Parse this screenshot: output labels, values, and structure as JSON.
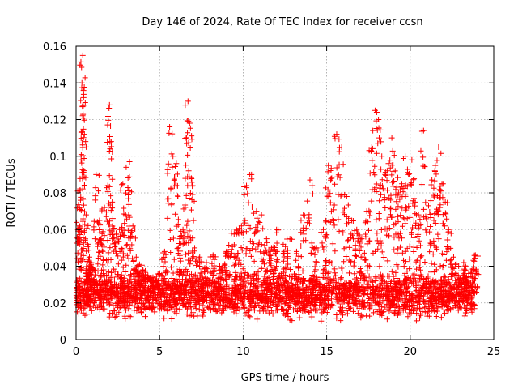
{
  "chart_data": {
    "type": "scatter",
    "title": "Day 146 of 2024, Rate Of TEC Index for receiver ccsn",
    "xlabel": "GPS time / hours",
    "ylabel": "ROTI / TECUs",
    "xlim": [
      0,
      25
    ],
    "ylim": [
      0,
      0.16
    ],
    "xticks": [
      0,
      5,
      10,
      15,
      20,
      25
    ],
    "yticks": [
      0,
      0.02,
      0.04,
      0.06,
      0.08,
      0.1,
      0.12,
      0.14,
      0.16
    ],
    "xtick_labels": [
      "0",
      "5",
      "10",
      "15",
      "20",
      "25"
    ],
    "ytick_labels": [
      "0",
      "0.02",
      "0.04",
      "0.06",
      "0.08",
      "0.1",
      "0.12",
      "0.14",
      "0.16"
    ],
    "grid": true,
    "marker": "+",
    "series": [
      {
        "name": "ROTI",
        "color": "#ff0000",
        "x": [
          0.05,
          0.1,
          0.2,
          0.3,
          0.35,
          0.4,
          0.45,
          0.5,
          0.6,
          0.7,
          0.8,
          0.9,
          1.0,
          1.2,
          1.4,
          1.5,
          1.7,
          1.9,
          2.0,
          2.1,
          2.2,
          2.4,
          2.6,
          2.8,
          3.0,
          3.2,
          3.4,
          3.6,
          3.8,
          4.0,
          4.3,
          4.6,
          5.0,
          5.3,
          5.6,
          5.8,
          6.0,
          6.2,
          6.4,
          6.6,
          6.7,
          6.8,
          6.9,
          7.1,
          7.4,
          7.8,
          8.2,
          8.6,
          9.0,
          9.3,
          9.6,
          9.9,
          10.2,
          10.5,
          10.8,
          11.1,
          11.4,
          11.7,
          12.0,
          12.4,
          12.8,
          13.2,
          13.6,
          14.0,
          14.4,
          14.8,
          15.1,
          15.3,
          15.6,
          15.9,
          16.2,
          16.5,
          16.8,
          17.1,
          17.4,
          17.7,
          17.9,
          18.1,
          18.3,
          18.5,
          18.7,
          18.9,
          19.1,
          19.3,
          19.5,
          19.7,
          19.9,
          20.1,
          20.3,
          20.5,
          20.8,
          21.1,
          21.3,
          21.5,
          21.7,
          21.9,
          22.1,
          22.3,
          22.6,
          22.9,
          23.2,
          23.5,
          23.8,
          23.9
        ],
        "y": [
          0.028,
          0.081,
          0.062,
          0.098,
          0.14,
          0.155,
          0.132,
          0.112,
          0.068,
          0.052,
          0.045,
          0.041,
          0.038,
          0.09,
          0.065,
          0.055,
          0.072,
          0.084,
          0.128,
          0.108,
          0.066,
          0.058,
          0.06,
          0.085,
          0.094,
          0.097,
          0.062,
          0.045,
          0.041,
          0.038,
          0.035,
          0.034,
          0.036,
          0.048,
          0.116,
          0.1,
          0.096,
          0.055,
          0.06,
          0.11,
          0.13,
          0.118,
          0.088,
          0.05,
          0.045,
          0.042,
          0.046,
          0.04,
          0.048,
          0.058,
          0.06,
          0.062,
          0.084,
          0.09,
          0.07,
          0.068,
          0.055,
          0.05,
          0.06,
          0.052,
          0.055,
          0.048,
          0.068,
          0.087,
          0.05,
          0.06,
          0.095,
          0.088,
          0.112,
          0.105,
          0.078,
          0.065,
          0.06,
          0.055,
          0.07,
          0.105,
          0.125,
          0.12,
          0.1,
          0.09,
          0.096,
          0.11,
          0.092,
          0.08,
          0.085,
          0.1,
          0.09,
          0.098,
          0.075,
          0.068,
          0.114,
          0.073,
          0.087,
          0.095,
          0.105,
          0.085,
          0.075,
          0.06,
          0.045,
          0.04,
          0.042,
          0.036,
          0.038,
          0.046
        ],
        "baseline_mean": 0.022,
        "baseline_min": 0.008
      }
    ]
  }
}
